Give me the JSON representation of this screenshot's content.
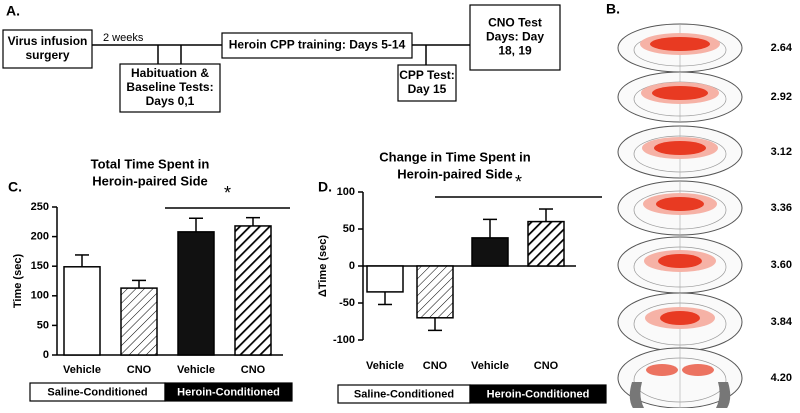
{
  "timeline": {
    "panel": "A.",
    "interval": "2 weeks",
    "boxes": [
      {
        "lines": [
          "Virus infusion",
          "surgery"
        ]
      },
      {
        "lines": [
          "Habituation &",
          "Baseline Tests:",
          "Days 0,1"
        ]
      },
      {
        "lines": [
          "Heroin CPP training: Days 5-14"
        ]
      },
      {
        "lines": [
          "CPP Test:",
          "Day 15"
        ]
      },
      {
        "lines": [
          "CNO Test",
          "Days: Day",
          "18, 19"
        ]
      }
    ]
  },
  "brain_sections": {
    "panel": "B.",
    "labels": [
      "2.64",
      "2.92",
      "3.12",
      "3.36",
      "3.60",
      "3.84",
      "4.20"
    ]
  },
  "chart_data": [
    {
      "type": "bar",
      "panel": "C.",
      "title": [
        "Total Time Spent in",
        "Heroin-paired Side"
      ],
      "ylabel": "Time (sec)",
      "categories": [
        "Vehicle",
        "CNO",
        "Vehicle",
        "CNO"
      ],
      "values": [
        149,
        113,
        208,
        218
      ],
      "errors": [
        20,
        13,
        23,
        14
      ],
      "bar_styles": [
        "open",
        "hatched",
        "solid",
        "hatched-bold"
      ],
      "groups": [
        "Saline-Conditioned",
        "Heroin-Conditioned"
      ],
      "significance": "*",
      "ylim": [
        0,
        250
      ],
      "yticks": [
        0,
        50,
        100,
        150,
        200,
        250
      ]
    },
    {
      "type": "bar",
      "panel": "D.",
      "title": [
        "Change in Time Spent in",
        "Heroin-paired Side"
      ],
      "ylabel": "ΔTime (sec)",
      "categories": [
        "Vehicle",
        "CNO",
        "Vehicle",
        "CNO"
      ],
      "values": [
        -35,
        -70,
        38,
        60
      ],
      "errors": [
        17,
        17,
        25,
        17
      ],
      "bar_styles": [
        "open",
        "hatched",
        "solid",
        "hatched-bold"
      ],
      "groups": [
        "Saline-Conditioned",
        "Heroin-Conditioned"
      ],
      "significance": "*",
      "ylim": [
        -100,
        100
      ],
      "yticks": [
        -100,
        -50,
        0,
        50,
        100
      ]
    }
  ]
}
